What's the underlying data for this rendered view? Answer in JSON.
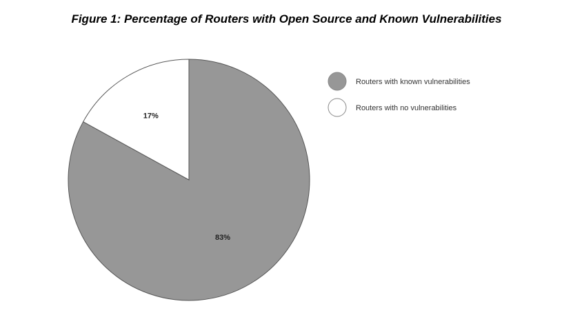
{
  "chart_data": {
    "type": "pie",
    "title": "Figure 1: Percentage of Routers with Open Source and Known Vulnerabilities",
    "series": [
      {
        "name": "Routers with known vulnerabilities",
        "value": 83,
        "label": "83%",
        "color": "#979797"
      },
      {
        "name": "Routers with no vulnerabilities",
        "value": 17,
        "label": "17%",
        "color": "#ffffff"
      }
    ],
    "legend_position": "right",
    "edge_color": "#555555"
  }
}
